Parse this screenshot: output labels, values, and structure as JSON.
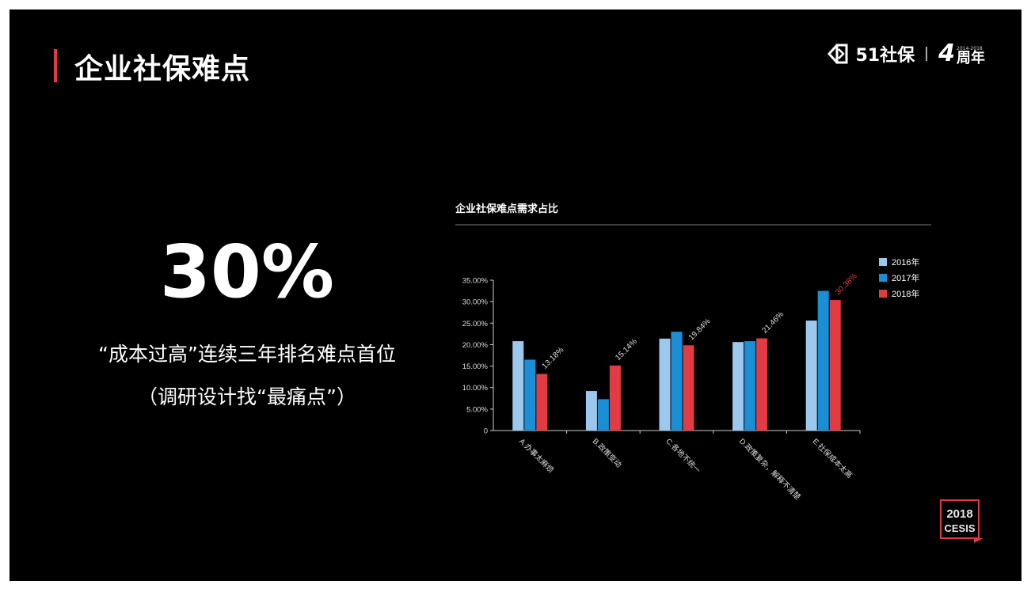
{
  "slide": {
    "title": "企业社保难点",
    "logo": {
      "brand": "51社保",
      "anniversary_number": "4",
      "anniversary_text": "周年",
      "years": "2014-2018"
    },
    "highlight": {
      "value": "30%",
      "line1": "“成本过高”连续三年排名难点首位",
      "line2": "（调研设计找“最痛点”）"
    },
    "stamp": {
      "line1": "2018",
      "line2": "CESIS"
    }
  },
  "colors": {
    "background": "#000000",
    "accent": "#e23b44",
    "s2016": "#9dc8ee",
    "s2017": "#1a8fd6",
    "s2018": "#e23b44",
    "text": "#ffffff"
  },
  "chart_data": {
    "type": "bar",
    "title": "企业社保难点需求占比",
    "categories": [
      "A.办事太麻烦",
      "B.政策变动",
      "C.各地不统一",
      "D.政策复杂，解释不清楚",
      "E.社保成本太高"
    ],
    "series": [
      {
        "name": "2016年",
        "values": [
          20.8,
          9.2,
          21.4,
          20.6,
          25.6
        ]
      },
      {
        "name": "2017年",
        "values": [
          16.5,
          7.3,
          23.0,
          20.8,
          32.5
        ]
      },
      {
        "name": "2018年",
        "values": [
          13.18,
          15.14,
          19.84,
          21.46,
          30.38
        ]
      }
    ],
    "data_labels": [
      "13.18%",
      "15.14%",
      "19.84%",
      "21.46%",
      "30.38%"
    ],
    "ylim": [
      0,
      35
    ],
    "yticks": [
      "0",
      "5.00%",
      "10.00%",
      "15.00%",
      "20.00%",
      "25.00%",
      "30.00%",
      "35.00%"
    ],
    "ytick_values": [
      0,
      5,
      10,
      15,
      20,
      25,
      30,
      35
    ],
    "legend_position": "top-right",
    "grid": false
  }
}
